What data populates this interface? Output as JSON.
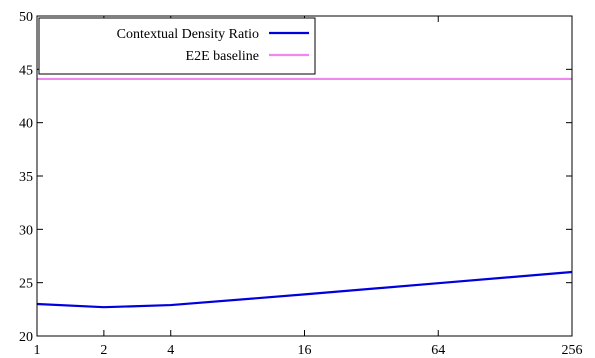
{
  "chart_data": {
    "type": "line",
    "x_scale": "log2",
    "x_ticks": [
      1,
      2,
      4,
      16,
      64,
      256
    ],
    "y_ticks": [
      20,
      25,
      30,
      35,
      40,
      45,
      50
    ],
    "xlim": [
      1,
      256
    ],
    "ylim": [
      20,
      50
    ],
    "grid": false,
    "legend_position": "top-left",
    "series": [
      {
        "name": "Contextual Density Ratio",
        "color": "#0000dd",
        "x": [
          1,
          2,
          4,
          16,
          64,
          256
        ],
        "y": [
          23.0,
          22.7,
          22.9,
          23.9,
          24.95,
          26.0
        ]
      },
      {
        "name": "E2E baseline",
        "color": "#ee88ee",
        "x": [
          1,
          256
        ],
        "y": [
          44.1,
          44.1
        ]
      }
    ]
  }
}
